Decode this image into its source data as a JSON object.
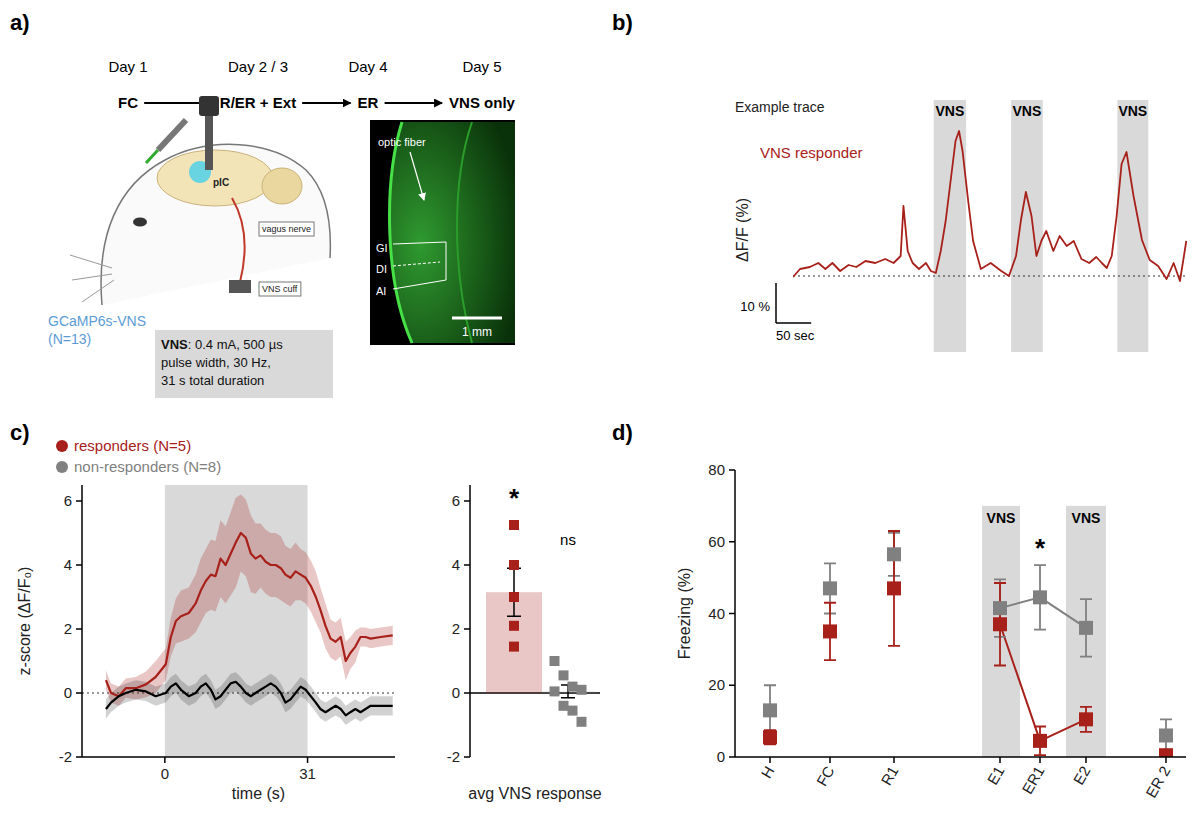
{
  "panel_labels": [
    "a)",
    "b)",
    "c)",
    "d)"
  ],
  "protocol": {
    "days": [
      "Day 1",
      "Day 2 / 3",
      "Day 4",
      "Day 5"
    ],
    "steps": [
      "FC",
      "R/ER + Ext",
      "ER",
      "VNS only"
    ]
  },
  "illustration": {
    "region": "pIC",
    "labels": [
      "vagus nerve",
      "VNS cuff"
    ],
    "group": "GCaMP6s-VNS",
    "n": "(N=13)",
    "parameters": [
      "VNS: 0.4 mA, 500 µs",
      "pulse width, 30 Hz,",
      "31 s total duration"
    ]
  },
  "histology": {
    "labels": [
      "optic fiber",
      "GI",
      "DI",
      "AI"
    ],
    "scale_bar": "1 mm"
  },
  "chart_data": [
    {
      "type": "line",
      "title": "Example trace",
      "ylabel": "ΔF/F (%)",
      "tick_labels": false,
      "xlim": [
        0,
        560
      ],
      "ylim": [
        -19,
        44
      ],
      "baseline": 0,
      "bands": [
        {
          "label": "VNS",
          "x": [
            200,
            246
          ]
        },
        {
          "label": "VNS",
          "x": [
            310,
            355
          ]
        },
        {
          "label": "VNS",
          "x": [
            461,
            505
          ]
        }
      ],
      "scale_bars": {
        "x": 50,
        "x_label": "50 sec",
        "y": 10,
        "y_label": "10 %"
      },
      "x": [
        0,
        10,
        24,
        36,
        46,
        56,
        67,
        79,
        90,
        103,
        117,
        131,
        143,
        153,
        157,
        163,
        170,
        179,
        189,
        196,
        203,
        210,
        217,
        224,
        231,
        236,
        241,
        249,
        256,
        267,
        281,
        296,
        307,
        317,
        324,
        331,
        339,
        346,
        353,
        360,
        370,
        379,
        389,
        399,
        410,
        421,
        431,
        439,
        446,
        453,
        460,
        467,
        474,
        484,
        496,
        507,
        519,
        531,
        541,
        550,
        559
      ],
      "series": [
        {
          "name": "VNS responder",
          "color": "#a8201a",
          "values": [
            -0.25,
            1.75,
            2.25,
            3.25,
            1.75,
            3.25,
            1.25,
            2.75,
            2.25,
            3.75,
            3.25,
            4.25,
            3.25,
            5,
            17.5,
            6.25,
            3.25,
            1.75,
            3.25,
            1.25,
            0.75,
            6.25,
            13.75,
            23.75,
            33.75,
            36.25,
            31.25,
            18.75,
            8.75,
            1.75,
            3.25,
            1.25,
            0,
            5,
            14,
            21,
            15,
            5,
            8.75,
            11.25,
            6.25,
            10,
            7.5,
            8.75,
            4.25,
            3.25,
            4.75,
            3.25,
            2,
            5,
            15,
            28,
            31,
            20,
            9,
            4,
            2.5,
            -0.75,
            3.25,
            -1.25,
            8.75
          ]
        }
      ]
    },
    {
      "type": "line",
      "ylabel": "z-score (ΔF/F₀)",
      "xlabel": "time (s)",
      "xlim": [
        -18,
        50
      ],
      "ylim": [
        -2,
        6.5
      ],
      "xticks": [
        0,
        31
      ],
      "yticks": [
        -2,
        0,
        2,
        4,
        6
      ],
      "baseline": 0,
      "bands": [
        {
          "x": [
            0,
            31
          ]
        }
      ],
      "x": [
        -12.8,
        -11.7,
        -10,
        -8.5,
        -6.3,
        -4.1,
        -2,
        0.2,
        1.3,
        2.4,
        3.5,
        5.2,
        6.7,
        7.8,
        8.9,
        10,
        11,
        12.1,
        13.2,
        14.3,
        15.4,
        16.5,
        17.6,
        18.7,
        19.7,
        20.8,
        21.9,
        23,
        24.1,
        25.2,
        26.2,
        27.3,
        28.4,
        29.5,
        30.6,
        31.7,
        32.8,
        33.8,
        34.9,
        36,
        37.1,
        38.2,
        39.3,
        40.3,
        41.4,
        42.5,
        43.6,
        44.7,
        46.9,
        49.5
      ],
      "series": [
        {
          "color": "#a8201a",
          "values": [
            0.4,
            0,
            -0.1,
            0.15,
            0.15,
            0.27,
            0.5,
            0.9,
            1.75,
            2.25,
            2.4,
            2.5,
            2.8,
            3.2,
            3.5,
            3.7,
            3.65,
            4.2,
            4.0,
            4.35,
            4.7,
            5.0,
            4.85,
            4.35,
            4.2,
            4.3,
            4.1,
            4.0,
            4.0,
            3.9,
            3.7,
            3.6,
            3.8,
            3.7,
            3.6,
            3.35,
            3.0,
            2.6,
            2.1,
            1.7,
            1.6,
            1.75,
            1.0,
            1.25,
            1.45,
            1.75,
            1.75,
            1.7,
            1.75,
            1.8
          ],
          "errors": [
            0.3,
            0.3,
            0.3,
            0.3,
            0.35,
            0.4,
            0.5,
            0.5,
            0.6,
            0.7,
            0.8,
            0.8,
            0.9,
            1.0,
            1.0,
            1.1,
            1.1,
            1.2,
            1.2,
            1.3,
            1.4,
            1.2,
            1.2,
            1.2,
            1.1,
            1.0,
            1.0,
            1.0,
            1.0,
            1.0,
            0.9,
            0.9,
            0.9,
            0.8,
            0.8,
            0.8,
            0.8,
            0.7,
            0.7,
            0.6,
            0.6,
            0.6,
            0.6,
            0.5,
            0.5,
            0.3,
            0.3,
            0.3,
            0.3,
            0.3
          ]
        },
        {
          "color": "#000000",
          "values": [
            -0.5,
            -0.3,
            -0.1,
            0,
            0.1,
            0.05,
            -0.1,
            0,
            0.2,
            0.3,
            0.1,
            -0.1,
            0,
            0.2,
            0.3,
            0.1,
            -0.2,
            -0.1,
            0.1,
            0.3,
            0.35,
            0.2,
            0,
            -0.1,
            0,
            0.1,
            0.2,
            0.3,
            0.2,
            0,
            -0.3,
            -0.2,
            0,
            0.2,
            0.1,
            -0.1,
            -0.3,
            -0.5,
            -0.6,
            -0.5,
            -0.4,
            -0.5,
            -0.7,
            -0.6,
            -0.5,
            -0.6,
            -0.5,
            -0.4,
            -0.4,
            -0.4
          ],
          "errors": [
            0.3,
            0.3,
            0.3,
            0.3,
            0.3,
            0.3,
            0.3,
            0.3,
            0.3,
            0.3,
            0.3,
            0.3,
            0.3,
            0.3,
            0.3,
            0.3,
            0.3,
            0.3,
            0.3,
            0.3,
            0.3,
            0.3,
            0.3,
            0.3,
            0.3,
            0.3,
            0.3,
            0.3,
            0.3,
            0.3,
            0.3,
            0.3,
            0.3,
            0.3,
            0.3,
            0.3,
            0.3,
            0.3,
            0.3,
            0.3,
            0.3,
            0.3,
            0.3,
            0.3,
            0.3,
            0.3,
            0.3,
            0.3,
            0.3,
            0.3
          ]
        }
      ]
    },
    {
      "type": "bar",
      "xlabel": "avg VNS response",
      "categories": [
        null
      ],
      "ylim": [
        -2,
        6.5
      ],
      "yticks": [
        -2,
        0,
        2,
        4,
        6
      ],
      "legend": "top-left",
      "series": [
        {
          "name": "responders (N=5)",
          "color": "#a8201a",
          "marker": "square",
          "values": [
            3.15
          ],
          "errors": [
            0.75
          ],
          "points": [
            5.25,
            4.0,
            3.0,
            2.1,
            1.45
          ],
          "annotation": "*"
        },
        {
          "name": "non-responders (N=8)",
          "color": "#808080",
          "marker": "square",
          "values": [
            0.05
          ],
          "errors": [
            0.2
          ],
          "points": [
            1.0,
            0.55,
            0.2,
            0.1,
            0.05,
            -0.4,
            -0.55,
            -0.9
          ],
          "annotation": "ns"
        }
      ]
    },
    {
      "type": "scatter",
      "ylabel": "Freezing (%)",
      "xlim": [
        -0.875,
        10.4
      ],
      "ylim": [
        0,
        80
      ],
      "yticks": [
        0,
        20,
        40,
        60,
        80
      ],
      "xticks": [
        {
          "value": 0,
          "label": "H"
        },
        {
          "value": 1.5,
          "label": "FC"
        },
        {
          "value": 3.1,
          "label": "R1"
        },
        {
          "value": 5.75,
          "label": "E1"
        },
        {
          "value": 6.75,
          "label": "ER1"
        },
        {
          "value": 7.9,
          "label": "E2"
        },
        {
          "value": 9.9,
          "label": "ER 2"
        }
      ],
      "bands": [
        {
          "label": "VNS",
          "x": [
            5.3,
            6.25
          ],
          "top": 70
        },
        {
          "label": "VNS",
          "x": [
            7.4,
            8.4
          ],
          "top": 70
        }
      ],
      "annotations": [
        {
          "text": "*",
          "x": 6.75
        }
      ],
      "x": [
        0,
        1.5,
        3.1,
        5.75,
        6.75,
        7.9,
        9.9
      ],
      "series": [
        {
          "color": "#808080",
          "marker": "square",
          "values": [
            13,
            47,
            56.5,
            41.5,
            44.5,
            36,
            6
          ],
          "errors": [
            7,
            7,
            6,
            8,
            9,
            8,
            4.5
          ]
        },
        {
          "color": "#a8201a",
          "marker": "square",
          "values": [
            5.5,
            35,
            47,
            37,
            4.5,
            10.5,
            0.5
          ],
          "errors": [
            2,
            8,
            16,
            11.5,
            4,
            3.5,
            1
          ]
        }
      ]
    }
  ]
}
